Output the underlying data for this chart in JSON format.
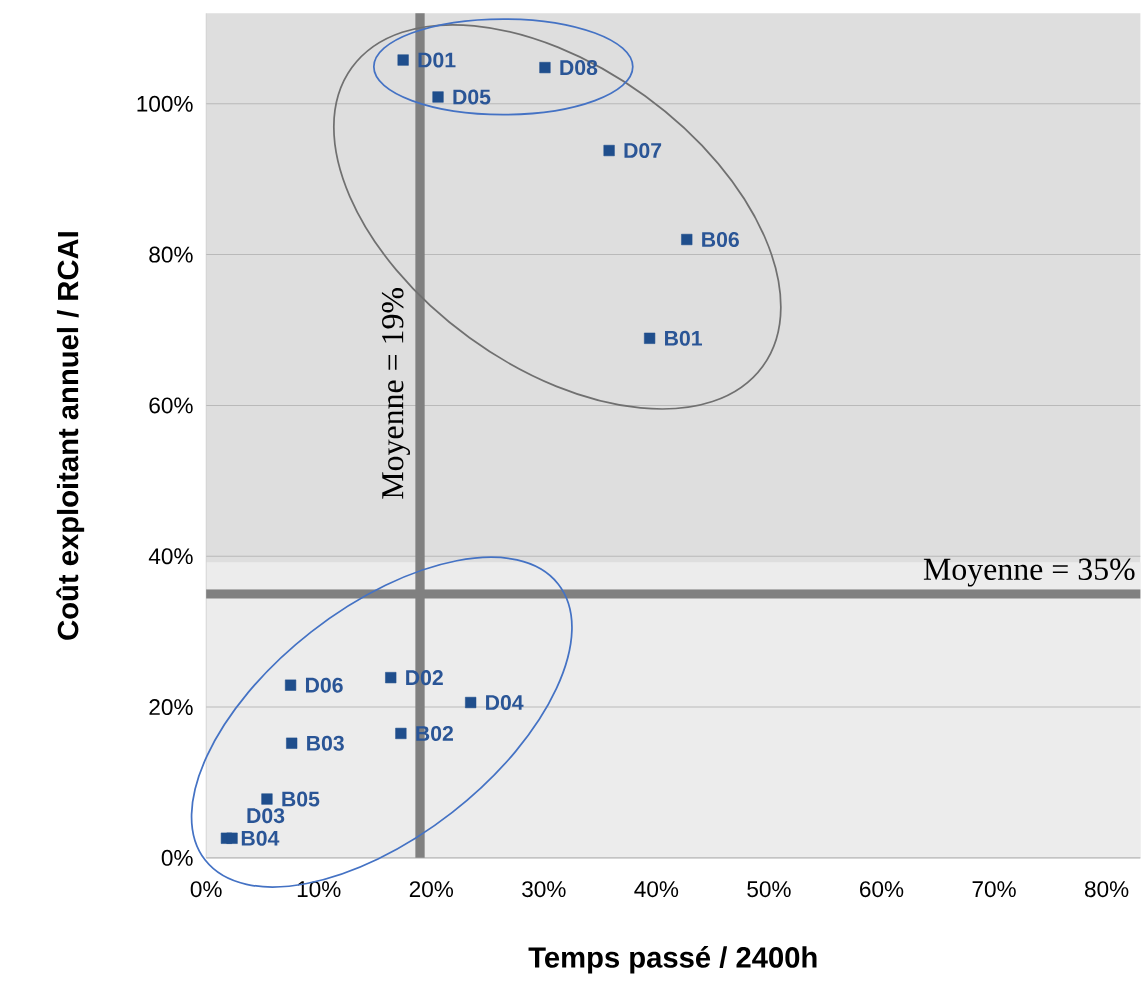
{
  "chart_data": {
    "type": "scatter",
    "xlabel": "Temps passé / 2400h",
    "ylabel": "Coût exploitant annuel / RCAI",
    "series": [
      {
        "color": "#1f4e8c",
        "x": [
          17.5,
          30.1,
          20.6,
          35.8,
          42.7,
          39.4,
          7.5,
          16.4,
          23.5,
          7.6,
          17.3,
          5.4,
          1.8,
          2.3
        ],
        "values": [
          105.8,
          104.8,
          100.9,
          93.8,
          82.0,
          68.9,
          22.9,
          23.9,
          20.6,
          15.2,
          16.5,
          7.8,
          2.6,
          2.6
        ]
      }
    ],
    "annotations": [
      {
        "text": "D01",
        "x": 17.5,
        "y": 105.8
      },
      {
        "text": "D08",
        "x": 30.1,
        "y": 104.8
      },
      {
        "text": "D05",
        "x": 20.6,
        "y": 100.9
      },
      {
        "text": "D07",
        "x": 35.8,
        "y": 93.8
      },
      {
        "text": "B06",
        "x": 42.7,
        "y": 82.0
      },
      {
        "text": "B01",
        "x": 39.4,
        "y": 68.9
      },
      {
        "text": "D06",
        "x": 7.5,
        "y": 22.9
      },
      {
        "text": "D02",
        "x": 16.4,
        "y": 23.9
      },
      {
        "text": "D04",
        "x": 23.5,
        "y": 20.6
      },
      {
        "text": "B03",
        "x": 7.6,
        "y": 15.2
      },
      {
        "text": "B02",
        "x": 17.3,
        "y": 16.5
      },
      {
        "text": "B05",
        "x": 5.4,
        "y": 7.8
      },
      {
        "text": "B04",
        "x": 1.8,
        "y": 2.6
      },
      {
        "text": "D03",
        "x": 2.3,
        "y": 2.6
      }
    ],
    "ref_lines": [
      {
        "axis": "x",
        "value": 19,
        "label": "Moyenne = 19%",
        "color": "#808080"
      },
      {
        "axis": "y",
        "value": 35,
        "label": "Moyenne = 35%",
        "color": "#808080"
      }
    ],
    "xlim": [
      0,
      83
    ],
    "ylim": [
      0,
      112
    ],
    "xticks": [
      {
        "value": 0,
        "label": "0%"
      },
      {
        "value": 10,
        "label": "10%"
      },
      {
        "value": 20,
        "label": "20%"
      },
      {
        "value": 30,
        "label": "30%"
      },
      {
        "value": 40,
        "label": "40%"
      },
      {
        "value": 50,
        "label": "50%"
      },
      {
        "value": 60,
        "label": "60%"
      },
      {
        "value": 70,
        "label": "70%"
      },
      {
        "value": 80,
        "label": "80%"
      }
    ],
    "yticks": [
      {
        "value": 0,
        "label": "0%"
      },
      {
        "value": 20,
        "label": "20%"
      },
      {
        "value": 40,
        "label": "40%"
      },
      {
        "value": 60,
        "label": "60%"
      },
      {
        "value": 80,
        "label": "80%"
      },
      {
        "value": 100,
        "label": "100%"
      }
    ],
    "grid": "y",
    "marker": "square"
  }
}
